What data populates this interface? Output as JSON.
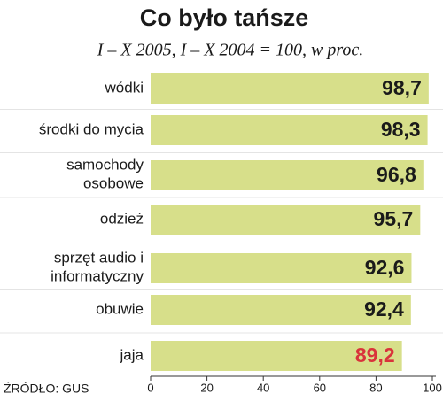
{
  "chart_data": {
    "type": "hbar",
    "title": "Co było tańsze",
    "subtitle": "I – X 2005, I – X 2004 = 100, w proc.",
    "source": "ŹRÓDŁO: GUS",
    "categories": [
      "wódki",
      "środki do mycia",
      "samochody\nosobowe",
      "odzież",
      "sprzęt audio i\ninformatyczny",
      "obuwie",
      "jaja"
    ],
    "values": [
      98.7,
      98.3,
      96.8,
      95.7,
      92.6,
      92.4,
      89.2
    ],
    "value_labels": [
      "98,7",
      "98,3",
      "96,8",
      "95,7",
      "92,6",
      "92,4",
      "89,2"
    ],
    "value_label_colors": [
      "#1a1a1a",
      "#1a1a1a",
      "#1a1a1a",
      "#1a1a1a",
      "#1a1a1a",
      "#1a1a1a",
      "#d9333b"
    ],
    "color": "#d7df8a",
    "xlim": [
      0,
      100
    ],
    "xticks": [
      0,
      20,
      40,
      60,
      80,
      100
    ]
  }
}
